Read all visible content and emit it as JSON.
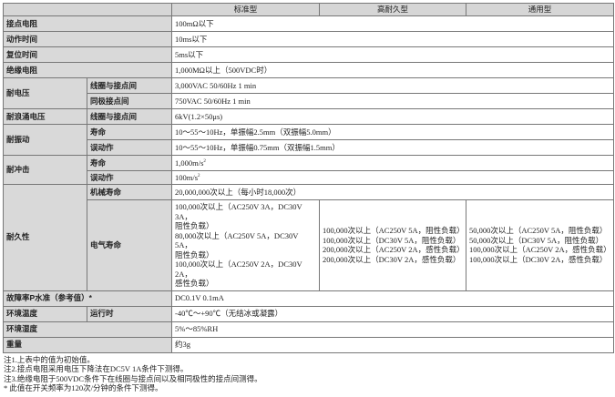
{
  "header": {
    "blank": "",
    "cols": [
      "标准型",
      "高耐久型",
      "通用型"
    ]
  },
  "rows": {
    "contact_resistance": {
      "label": "接点电阻",
      "value": "100mΩ以下"
    },
    "operate_time": {
      "label": "动作时间",
      "value": "10ms以下"
    },
    "release_time": {
      "label": "复位时间",
      "value": "5ms以下"
    },
    "insulation": {
      "label": "绝缘电阻",
      "value": "1,000MΩ以上（500VDC时）"
    },
    "dielectric": {
      "label": "耐电压",
      "sub1": "线圈与接点间",
      "val1": "3,000VAC 50/60Hz 1 min",
      "sub2": "同极接点间",
      "val2": "750VAC 50/60Hz 1 min"
    },
    "surge": {
      "label": "耐浪涌电压",
      "sub": "线圈与接点间",
      "value": "6kV(1.2×50μs)"
    },
    "vibration": {
      "label": "耐振动",
      "sub1": "寿命",
      "val1": "10～55～10Hz，单振幅2.5mm（双振幅5.0mm）",
      "sub2": "误动作",
      "val2": "10～55～10Hz，单振幅0.75mm（双振幅1.5mm）"
    },
    "shock": {
      "label": "耐冲击",
      "sub1": "寿命",
      "val1": "1,000m/s",
      "sub2": "误动作",
      "val2": "100m/s",
      "sup": "2"
    },
    "endurance": {
      "label": "耐久性",
      "mech_label": "机械寿命",
      "mech_value": "20,000,000次以上（每小时18,000次）",
      "elec_label": "电气寿命",
      "elec_standard": [
        "100,000次以上（AC250V 3A，DC30V 3A，",
        "阻性负载）",
        "80,000次以上（AC250V 5A，DC30V 5A，",
        "阻性负载）",
        "100,000次以上（AC250V 2A，DC30V 2A，",
        "感性负载）"
      ],
      "elec_high": [
        "100,000次以上（AC250V 5A，阻性负载）",
        "100,000次以上（DC30V 5A，阻性负载）",
        "200,000次以上（AC250V 2A，感性负载）",
        "200,000次以上（DC30V 2A，感性负载）"
      ],
      "elec_general": [
        "50,000次以上（AC250V 5A，阻性负载）",
        "50,000次以上（DC30V 5A，阻性负载）",
        "100,000次以上（AC250V 2A，感性负载）",
        "100,000次以上（DC30V 2A，感性负载）"
      ]
    },
    "failure_rate": {
      "label": "故障率P水准（参考值）*",
      "value": "DC0.1V 0.1mA"
    },
    "ambient_temp": {
      "label": "环境温度",
      "sub": "运行时",
      "value": "-40℃～+90℃（无结冰或凝露）"
    },
    "ambient_humidity": {
      "label": "环境湿度",
      "value": "5%～85%RH"
    },
    "weight": {
      "label": "重量",
      "value": "约3g"
    }
  },
  "notes": [
    "注1.上表中的值为初始值。",
    "注2.接点电阻采用电压下降法在DC5V 1A条件下测得。",
    "注3.绝缘电阻于500VDC条件下在线圈与接点间以及相同极性的接点间测得。",
    "* 此值在开关频率为120次/分钟的条件下测得。"
  ]
}
